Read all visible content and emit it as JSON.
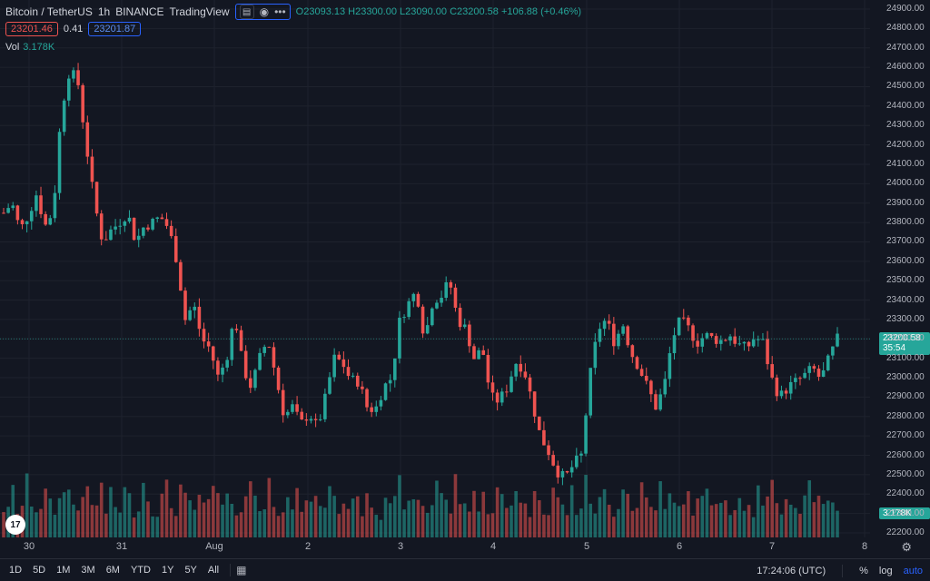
{
  "legend": {
    "symbol": "Bitcoin / TetherUS",
    "interval": "1h",
    "exchange": "BINANCE",
    "source": "TradingView",
    "ohlc_text": "O23093.13 H23300.00 L23090.00 C23200.58 +106.88 (+0.46%)",
    "bid": "23201.46",
    "spread": "0.41",
    "ask": "23201.87"
  },
  "volume": {
    "label": "Vol",
    "value": "3.178K"
  },
  "price_axis": {
    "labels": [
      "24900.00",
      "24800.00",
      "24700.00",
      "24600.00",
      "24500.00",
      "24400.00",
      "24300.00",
      "24200.00",
      "24100.00",
      "24000.00",
      "23900.00",
      "23800.00",
      "23700.00",
      "23600.00",
      "23500.00",
      "23400.00",
      "23300.00",
      "23200.00",
      "23100.00",
      "23000.00",
      "22900.00",
      "22800.00",
      "22700.00",
      "22600.00",
      "22500.00",
      "22400.00",
      "22300.00",
      "22200.00"
    ],
    "last_price": "23200.58",
    "countdown": "35:54"
  },
  "time_axis": {
    "labels": [
      "30",
      "31",
      "Aug",
      "2",
      "3",
      "4",
      "5",
      "6",
      "7",
      "8"
    ],
    "clock": "17:24:06 (UTC)"
  },
  "bottom": {
    "ranges": [
      "1D",
      "5D",
      "1M",
      "3M",
      "6M",
      "YTD",
      "1Y",
      "5Y",
      "All"
    ],
    "percent": "%",
    "log": "log",
    "auto": "auto"
  },
  "logo": "17",
  "colors": {
    "up": "#26a69a",
    "down": "#ef5350",
    "background": "#131722",
    "accent": "#2962ff"
  },
  "icons": {
    "eye": "eye-icon",
    "more": "more-icon",
    "settings": "gear-icon",
    "calendar": "calendar-range-icon"
  },
  "chart_data": {
    "type": "candlestick",
    "price_range": [
      22200,
      24900
    ],
    "close_path": [
      23850,
      23900,
      23760,
      23840,
      23950,
      23780,
      23860,
      24380,
      24590,
      24520,
      24200,
      23900,
      23700,
      23760,
      23800,
      23850,
      23700,
      23780,
      23800,
      23830,
      23770,
      23600,
      23300,
      23380,
      23200,
      23150,
      23000,
      23100,
      23320,
      23050,
      22950,
      23100,
      23200,
      23000,
      22800,
      22850,
      22760,
      22820,
      22740,
      22900,
      23100,
      23080,
      22990,
      22980,
      22850,
      22830,
      22950,
      23000,
      23300,
      23380,
      23450,
      23200,
      23400,
      23420,
      23500,
      23300,
      23250,
      23100,
      23150,
      22900,
      22880,
      22950,
      23080,
      23050,
      22880,
      22700,
      22620,
      22520,
      22480,
      22550,
      22600,
      23000,
      23250,
      23300,
      23180,
      23280,
      23130,
      23050,
      22950,
      22850,
      22950,
      23200,
      23300,
      23250,
      23180,
      23220,
      23200,
      23190,
      23220,
      23170,
      23150,
      23210,
      23180,
      23000,
      22900,
      22950,
      22980,
      23010,
      23050,
      22990,
      23100,
      23200
    ],
    "volume_pattern": [
      0.3,
      0.25,
      0.45,
      0.28,
      0.32,
      0.5,
      0.38,
      0.29,
      0.34,
      0.42,
      0.31,
      0.27,
      0.36,
      0.6,
      0.44,
      0.33,
      0.28,
      0.52,
      0.4,
      0.3,
      0.35,
      0.48,
      0.26,
      0.39,
      0.31,
      0.29,
      0.45,
      0.37,
      0.28,
      0.33,
      0.55,
      0.41,
      0.3,
      0.27,
      0.38,
      0.46,
      0.32,
      0.29,
      0.5,
      0.36
    ]
  }
}
